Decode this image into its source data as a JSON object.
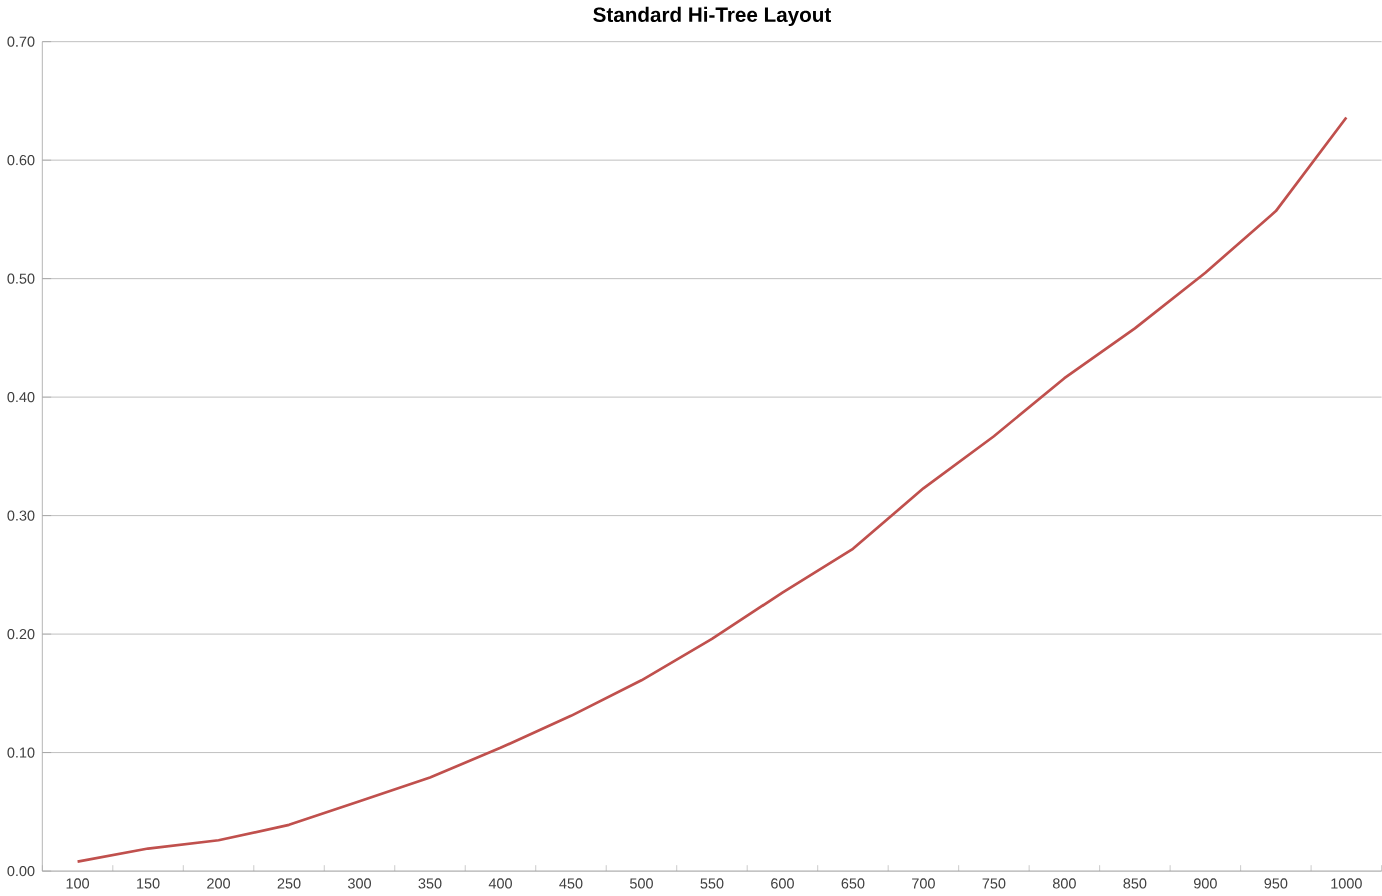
{
  "chart_data": {
    "type": "line",
    "title": "Standard Hi-Tree Layout",
    "categories": [
      "100",
      "150",
      "200",
      "250",
      "300",
      "350",
      "400",
      "450",
      "500",
      "550",
      "600",
      "650",
      "700",
      "750",
      "800",
      "850",
      "900",
      "950",
      "1000"
    ],
    "series": [
      {
        "color": "#c0504d",
        "values": [
          0.008,
          0.019,
          0.026,
          0.039,
          0.059,
          0.079,
          0.104,
          0.131,
          0.161,
          0.196,
          0.235,
          0.272,
          0.323,
          0.367,
          0.416,
          0.458,
          0.505,
          0.557,
          0.636
        ]
      }
    ],
    "ylim": [
      0,
      0.7
    ],
    "yticks": [
      {
        "value": 0,
        "label": "0.00"
      },
      {
        "value": 0.1,
        "label": "0.10"
      },
      {
        "value": 0.2,
        "label": "0.20"
      },
      {
        "value": 0.3,
        "label": "0.30"
      },
      {
        "value": 0.4,
        "label": "0.40"
      },
      {
        "value": 0.5,
        "label": "0.50"
      },
      {
        "value": 0.6,
        "label": "0.60"
      },
      {
        "value": 0.7,
        "label": "0.70"
      }
    ],
    "grid": "y",
    "marker": "none",
    "line_style": "solid"
  }
}
